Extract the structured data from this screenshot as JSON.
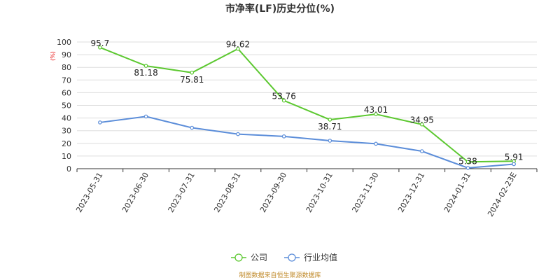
{
  "chart_data": {
    "type": "line",
    "title": "市净率(LF)历史分位(%)",
    "unit_label": "(%)",
    "categories": [
      "2023-05-31",
      "2023-06-30",
      "2023-07-31",
      "2023-08-31",
      "2023-09-30",
      "2023-10-31",
      "2023-11-30",
      "2023-12-31",
      "2024-01-31",
      "2024-02-23E"
    ],
    "ylim": [
      0,
      100
    ],
    "yticks": [
      "0",
      "10",
      "20",
      "30",
      "40",
      "50",
      "60",
      "70",
      "80",
      "90",
      "100"
    ],
    "grid": true,
    "legend_position": "bottom-center",
    "series": [
      {
        "name": "公司",
        "color": "#5cc830",
        "values": [
          95.7,
          81.18,
          75.81,
          94.62,
          53.76,
          38.71,
          43.01,
          34.95,
          5.38,
          5.91
        ],
        "labels": [
          "95.7",
          "81.18",
          "75.81",
          "94.62",
          "53.76",
          "38.71",
          "43.01",
          "34.95",
          "5.38",
          "5.91"
        ]
      },
      {
        "name": "行业均值",
        "color": "#5b8dd9",
        "values": [
          36.5,
          41.2,
          32.3,
          27.3,
          25.5,
          22.1,
          19.7,
          13.8,
          0.6,
          3.6
        ]
      }
    ]
  },
  "footer": {
    "source": "制图数据来自恒生聚源数据库"
  }
}
